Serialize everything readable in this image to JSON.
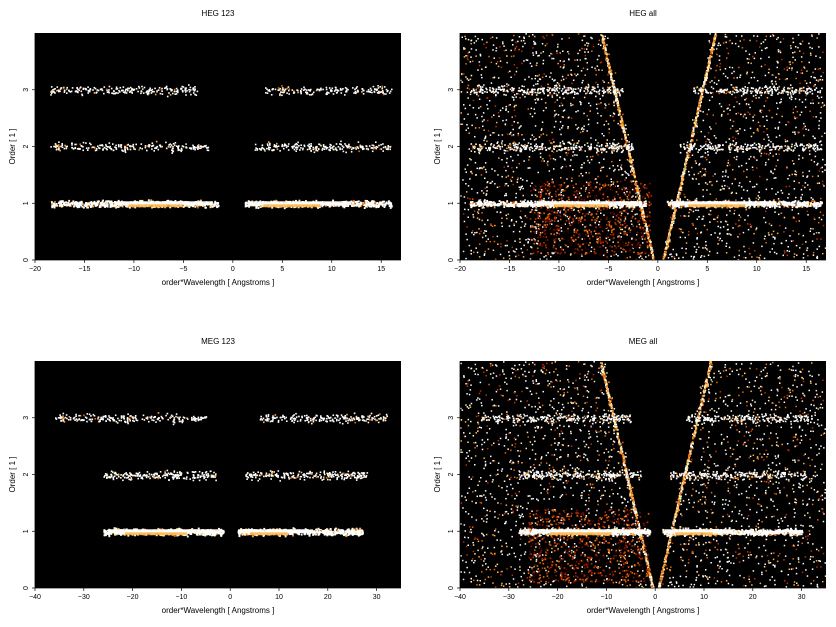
{
  "chart_data": [
    {
      "type": "heatmap",
      "title": "HEG 123",
      "xlabel": "order*Wavelength [ Angstroms ]",
      "ylabel": "Order [ 1 ]",
      "xlim": [
        -20,
        17
      ],
      "ylim": [
        0,
        4
      ],
      "xticks": [
        -20,
        -15,
        -10,
        -5,
        0,
        5,
        10,
        15
      ],
      "yticks": [
        0,
        1,
        2,
        3
      ],
      "background": "#000000",
      "bands": [
        {
          "order": 1,
          "x_min": -18.5,
          "x_max": 16,
          "gap": [
            -1.5,
            1.2
          ],
          "peak_ranges": [
            [
              -12,
              -2
            ],
            [
              1.5,
              12
            ]
          ]
        },
        {
          "order": 2,
          "x_min": -18.5,
          "x_max": 16,
          "gap": [
            -2.5,
            2.2
          ]
        },
        {
          "order": 3,
          "x_min": -18.5,
          "x_max": 16,
          "gap": [
            -3.5,
            3.2
          ]
        }
      ],
      "wedges": false
    },
    {
      "type": "heatmap",
      "title": "HEG all",
      "xlabel": "order*Wavelength [ Angstroms ]",
      "ylabel": "Order [ 1 ]",
      "xlim": [
        -20,
        17
      ],
      "ylim": [
        0,
        4
      ],
      "xticks": [
        -20,
        -15,
        -10,
        -5,
        0,
        5,
        10,
        15
      ],
      "yticks": [
        0,
        1,
        2,
        3
      ],
      "background": "#000000",
      "bands": [
        {
          "order": 1,
          "x_min": -19,
          "x_max": 16.5,
          "gap": [
            -1.2,
            0.9
          ],
          "peak_ranges": [
            [
              -12,
              -2
            ],
            [
              1.5,
              12
            ]
          ]
        },
        {
          "order": 2,
          "x_min": -19,
          "x_max": 16.5,
          "gap": [
            -2.5,
            2.2
          ]
        },
        {
          "order": 3,
          "x_min": -19,
          "x_max": 16.5,
          "gap": [
            -3.5,
            3.2
          ]
        }
      ],
      "wedges": true
    },
    {
      "type": "heatmap",
      "title": "MEG 123",
      "xlabel": "order*Wavelength [ Angstroms ]",
      "ylabel": "Order [ 1 ]",
      "xlim": [
        -40,
        35
      ],
      "ylim": [
        0,
        4
      ],
      "xticks": [
        -40,
        -30,
        -20,
        -10,
        0,
        10,
        20,
        30
      ],
      "yticks": [
        0,
        1,
        2,
        3
      ],
      "background": "#000000",
      "bands": [
        {
          "order": 1,
          "x_min": -26,
          "x_max": 27,
          "gap": [
            -1.5,
            1.5
          ],
          "peak_ranges": [
            [
              -25,
              -2
            ],
            [
              2,
              16
            ]
          ]
        },
        {
          "order": 2,
          "x_min": -26,
          "x_max": 28,
          "gap": [
            -3,
            3
          ]
        },
        {
          "order": 3,
          "x_min": -36,
          "x_max": 32,
          "gap": [
            -5,
            6
          ]
        }
      ],
      "wedges": false
    },
    {
      "type": "heatmap",
      "title": "MEG all",
      "xlabel": "order*Wavelength [ Angstroms ]",
      "ylabel": "Order [ 1 ]",
      "xlim": [
        -40,
        35
      ],
      "ylim": [
        0,
        4
      ],
      "xticks": [
        -40,
        -30,
        -20,
        -10,
        0,
        10,
        20,
        30
      ],
      "yticks": [
        0,
        1,
        2,
        3
      ],
      "background": "#000000",
      "bands": [
        {
          "order": 1,
          "x_min": -28,
          "x_max": 30,
          "gap": [
            -1.2,
            1.2
          ],
          "peak_ranges": [
            [
              -25,
              -2
            ],
            [
              2,
              16
            ]
          ]
        },
        {
          "order": 2,
          "x_min": -28,
          "x_max": 31,
          "gap": [
            -3,
            3
          ]
        },
        {
          "order": 3,
          "x_min": -36,
          "x_max": 32,
          "gap": [
            -5,
            6
          ]
        }
      ],
      "wedges": true
    }
  ],
  "colors": {
    "hot": [
      "#3a0000",
      "#7a1000",
      "#b83000",
      "#e86a00",
      "#ffb040",
      "#ffe8a0",
      "#ffffff"
    ]
  }
}
